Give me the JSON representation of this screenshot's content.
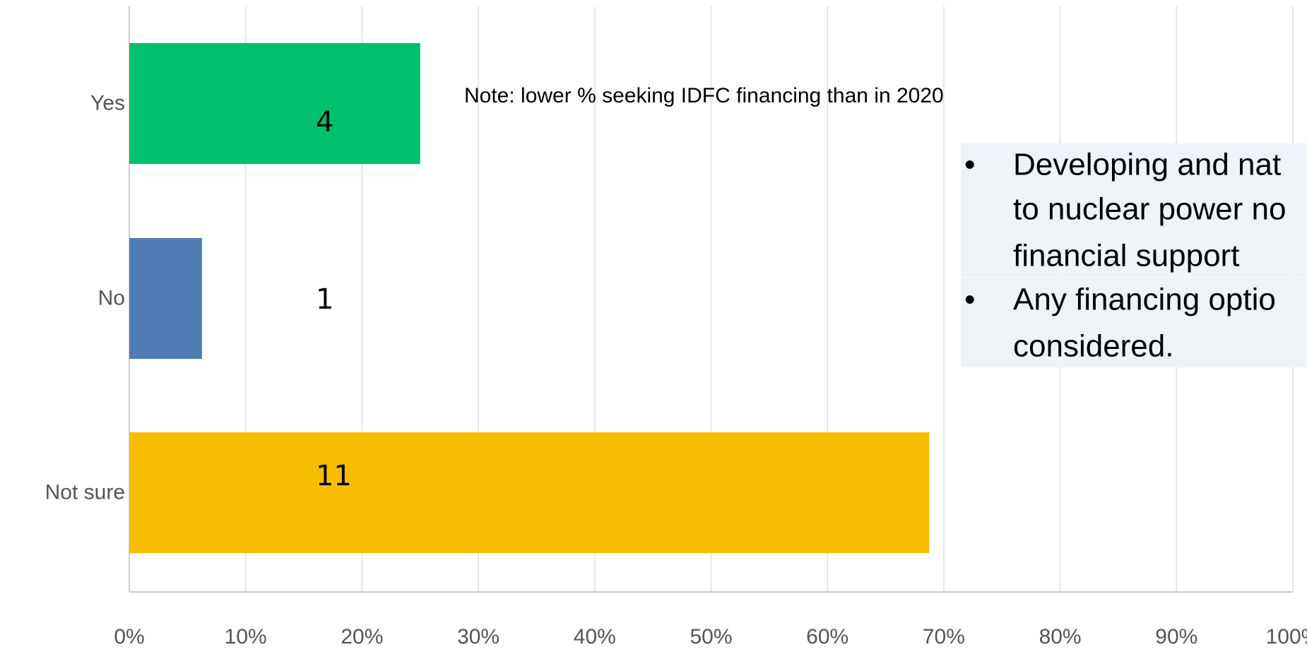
{
  "chart_data": {
    "type": "bar",
    "orientation": "horizontal",
    "categories": [
      "Yes",
      "No",
      "Not sure"
    ],
    "series": [
      {
        "name": null,
        "colors": [
          "#00bf6f",
          "#507cb6",
          "#f7bd00"
        ],
        "values": [
          25,
          6.25,
          68.75
        ]
      }
    ],
    "counts": [
      "4",
      "1",
      "11"
    ],
    "xlim": [
      0,
      100
    ],
    "xticks": [
      {
        "value": 0,
        "label": "0%"
      },
      {
        "value": 10,
        "label": "10%"
      },
      {
        "value": 20,
        "label": "20%"
      },
      {
        "value": 30,
        "label": "30%"
      },
      {
        "value": 40,
        "label": "40%"
      },
      {
        "value": 50,
        "label": "50%"
      },
      {
        "value": 60,
        "label": "60%"
      },
      {
        "value": 70,
        "label": "70%"
      },
      {
        "value": 80,
        "label": "80%"
      },
      {
        "value": 90,
        "label": "90%"
      },
      {
        "value": 100,
        "label": "100%"
      }
    ],
    "grid": true,
    "annotation": "Note:  lower % seeking IDFC financing than in 2020",
    "callout": [
      [
        "Developing  and nat",
        "to nuclear power no",
        "financial support"
      ],
      [
        "Any financing optio",
        "considered."
      ]
    ]
  }
}
